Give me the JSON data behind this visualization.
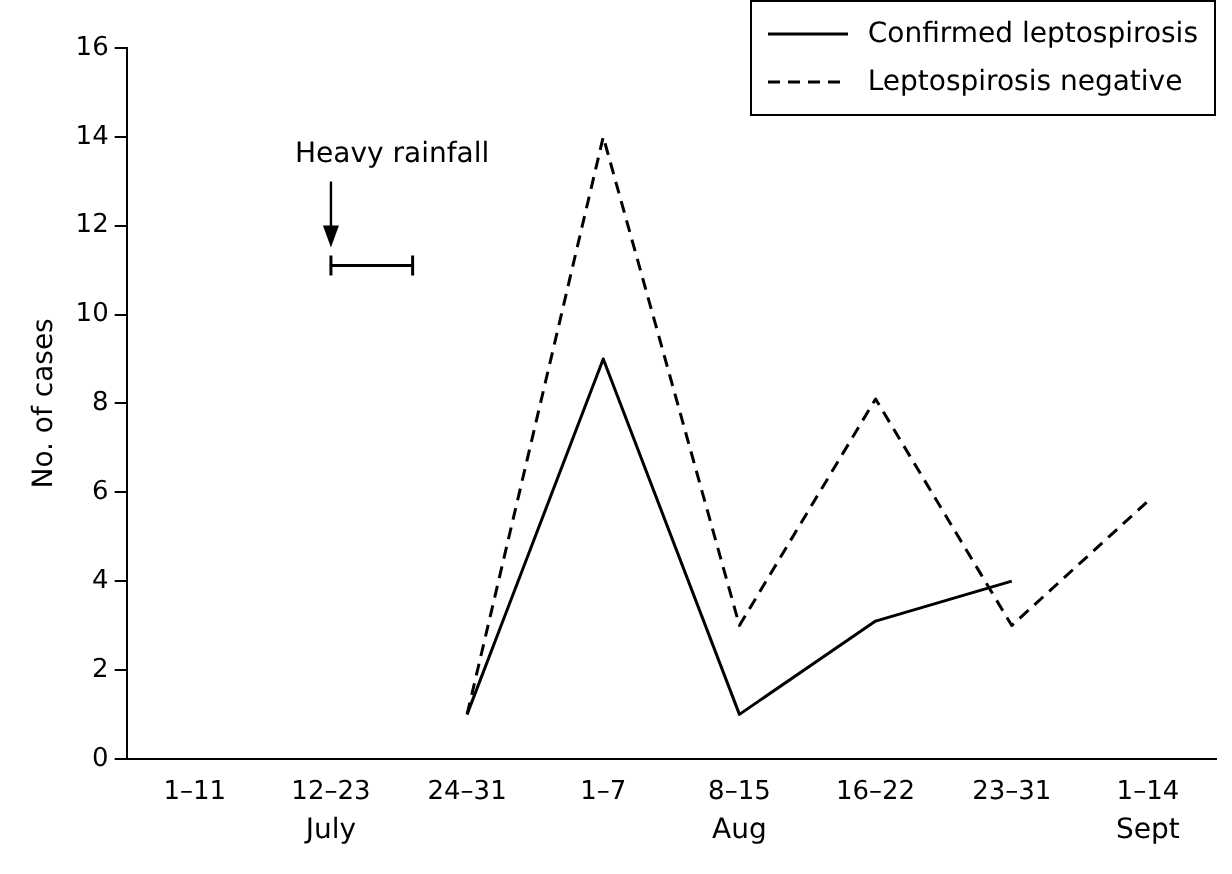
{
  "chart_data": {
    "type": "line",
    "ylabel": "No. of cases",
    "categories": [
      "1–11",
      "12–23",
      "24–31",
      "1–7",
      "8–15",
      "16–22",
      "23–31",
      "1–14"
    ],
    "series": [
      {
        "name": "Confirmed leptospirosis",
        "color": "#000000",
        "line_style": "solid",
        "values": [
          null,
          null,
          1,
          9,
          1,
          3.1,
          4,
          null
        ]
      },
      {
        "name": "Leptospirosis negative",
        "color": "#000000",
        "line_style": "dashed",
        "values": [
          null,
          null,
          1,
          14,
          3,
          8.1,
          3,
          5.8
        ]
      }
    ],
    "ylim": [
      0,
      16
    ],
    "yticks": [
      0,
      2,
      4,
      6,
      8,
      10,
      12,
      14,
      16
    ],
    "grid": false,
    "legend": "top right",
    "marker": "none",
    "annotations": [
      "Heavy rainfall",
      "July",
      "Aug",
      "Sept"
    ]
  }
}
